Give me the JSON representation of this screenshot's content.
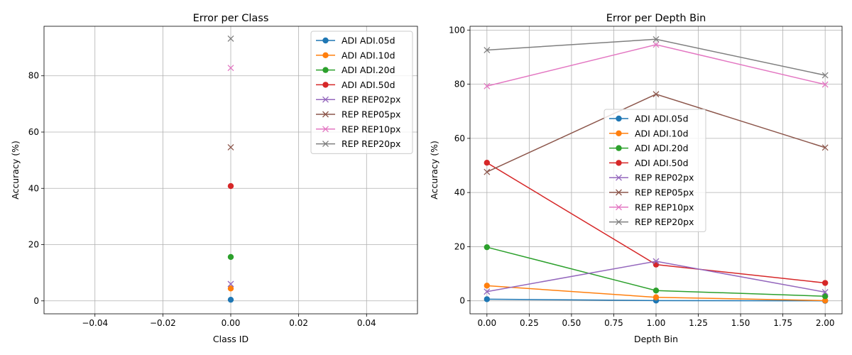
{
  "chart_data": [
    {
      "type": "line",
      "title": "Error per Class",
      "xlabel": "Class ID",
      "ylabel": "Accuracy (%)",
      "xlim": [
        -0.055,
        0.055
      ],
      "ylim": [
        -4.6,
        97.6
      ],
      "xticks": [
        -0.04,
        -0.02,
        0.0,
        0.02,
        0.04
      ],
      "xtick_labels": [
        "−0.04",
        "−0.02",
        "0.00",
        "0.02",
        "0.04"
      ],
      "yticks": [
        0,
        20,
        40,
        60,
        80
      ],
      "ytick_labels": [
        "0",
        "20",
        "40",
        "60",
        "80"
      ],
      "grid": true,
      "legend_position": "top-right",
      "x": [
        0
      ],
      "series": [
        {
          "name": "ADI ADI.05d",
          "marker": "o",
          "color": "#1f77b4",
          "values": [
            0.4
          ]
        },
        {
          "name": "ADI ADI.10d",
          "marker": "o",
          "color": "#ff7f0e",
          "values": [
            4.4
          ]
        },
        {
          "name": "ADI ADI.20d",
          "marker": "o",
          "color": "#2ca02c",
          "values": [
            15.6
          ]
        },
        {
          "name": "ADI ADI.50d",
          "marker": "o",
          "color": "#d62728",
          "values": [
            40.8
          ]
        },
        {
          "name": "REP REP02px",
          "marker": "x",
          "color": "#9467bd",
          "values": [
            6.0
          ]
        },
        {
          "name": "REP REP05px",
          "marker": "x",
          "color": "#8c564b",
          "values": [
            54.6
          ]
        },
        {
          "name": "REP REP10px",
          "marker": "x",
          "color": "#e377c2",
          "values": [
            82.8
          ]
        },
        {
          "name": "REP REP20px",
          "marker": "x",
          "color": "#7f7f7f",
          "values": [
            93.2
          ]
        }
      ]
    },
    {
      "type": "line",
      "title": "Error per Depth Bin",
      "xlabel": "Depth Bin",
      "ylabel": "Accuracy (%)",
      "xlim": [
        -0.1,
        2.1
      ],
      "ylim": [
        -4.8,
        101.4
      ],
      "xticks": [
        0.0,
        0.25,
        0.5,
        0.75,
        1.0,
        1.25,
        1.5,
        1.75,
        2.0
      ],
      "xtick_labels": [
        "0.00",
        "0.25",
        "0.50",
        "0.75",
        "1.00",
        "1.25",
        "1.50",
        "1.75",
        "2.00"
      ],
      "yticks": [
        0,
        20,
        40,
        60,
        80,
        100
      ],
      "ytick_labels": [
        "0",
        "20",
        "40",
        "60",
        "80",
        "100"
      ],
      "grid": true,
      "legend_position": "center",
      "x": [
        0,
        1,
        2
      ],
      "series": [
        {
          "name": "ADI ADI.05d",
          "marker": "o",
          "color": "#1f77b4",
          "values": [
            0.6,
            0.1,
            0.0
          ]
        },
        {
          "name": "ADI ADI.10d",
          "marker": "o",
          "color": "#ff7f0e",
          "values": [
            5.6,
            1.3,
            0.1
          ]
        },
        {
          "name": "ADI ADI.20d",
          "marker": "o",
          "color": "#2ca02c",
          "values": [
            19.8,
            3.8,
            1.7
          ]
        },
        {
          "name": "ADI ADI.50d",
          "marker": "o",
          "color": "#d62728",
          "values": [
            51.0,
            13.4,
            6.6
          ]
        },
        {
          "name": "REP REP02px",
          "marker": "x",
          "color": "#9467bd",
          "values": [
            3.4,
            14.6,
            3.2
          ]
        },
        {
          "name": "REP REP05px",
          "marker": "x",
          "color": "#8c564b",
          "values": [
            47.6,
            76.3,
            56.6
          ]
        },
        {
          "name": "REP REP10px",
          "marker": "x",
          "color": "#e377c2",
          "values": [
            79.3,
            94.6,
            79.9
          ]
        },
        {
          "name": "REP REP20px",
          "marker": "x",
          "color": "#7f7f7f",
          "values": [
            92.6,
            96.6,
            83.3
          ]
        }
      ]
    }
  ]
}
